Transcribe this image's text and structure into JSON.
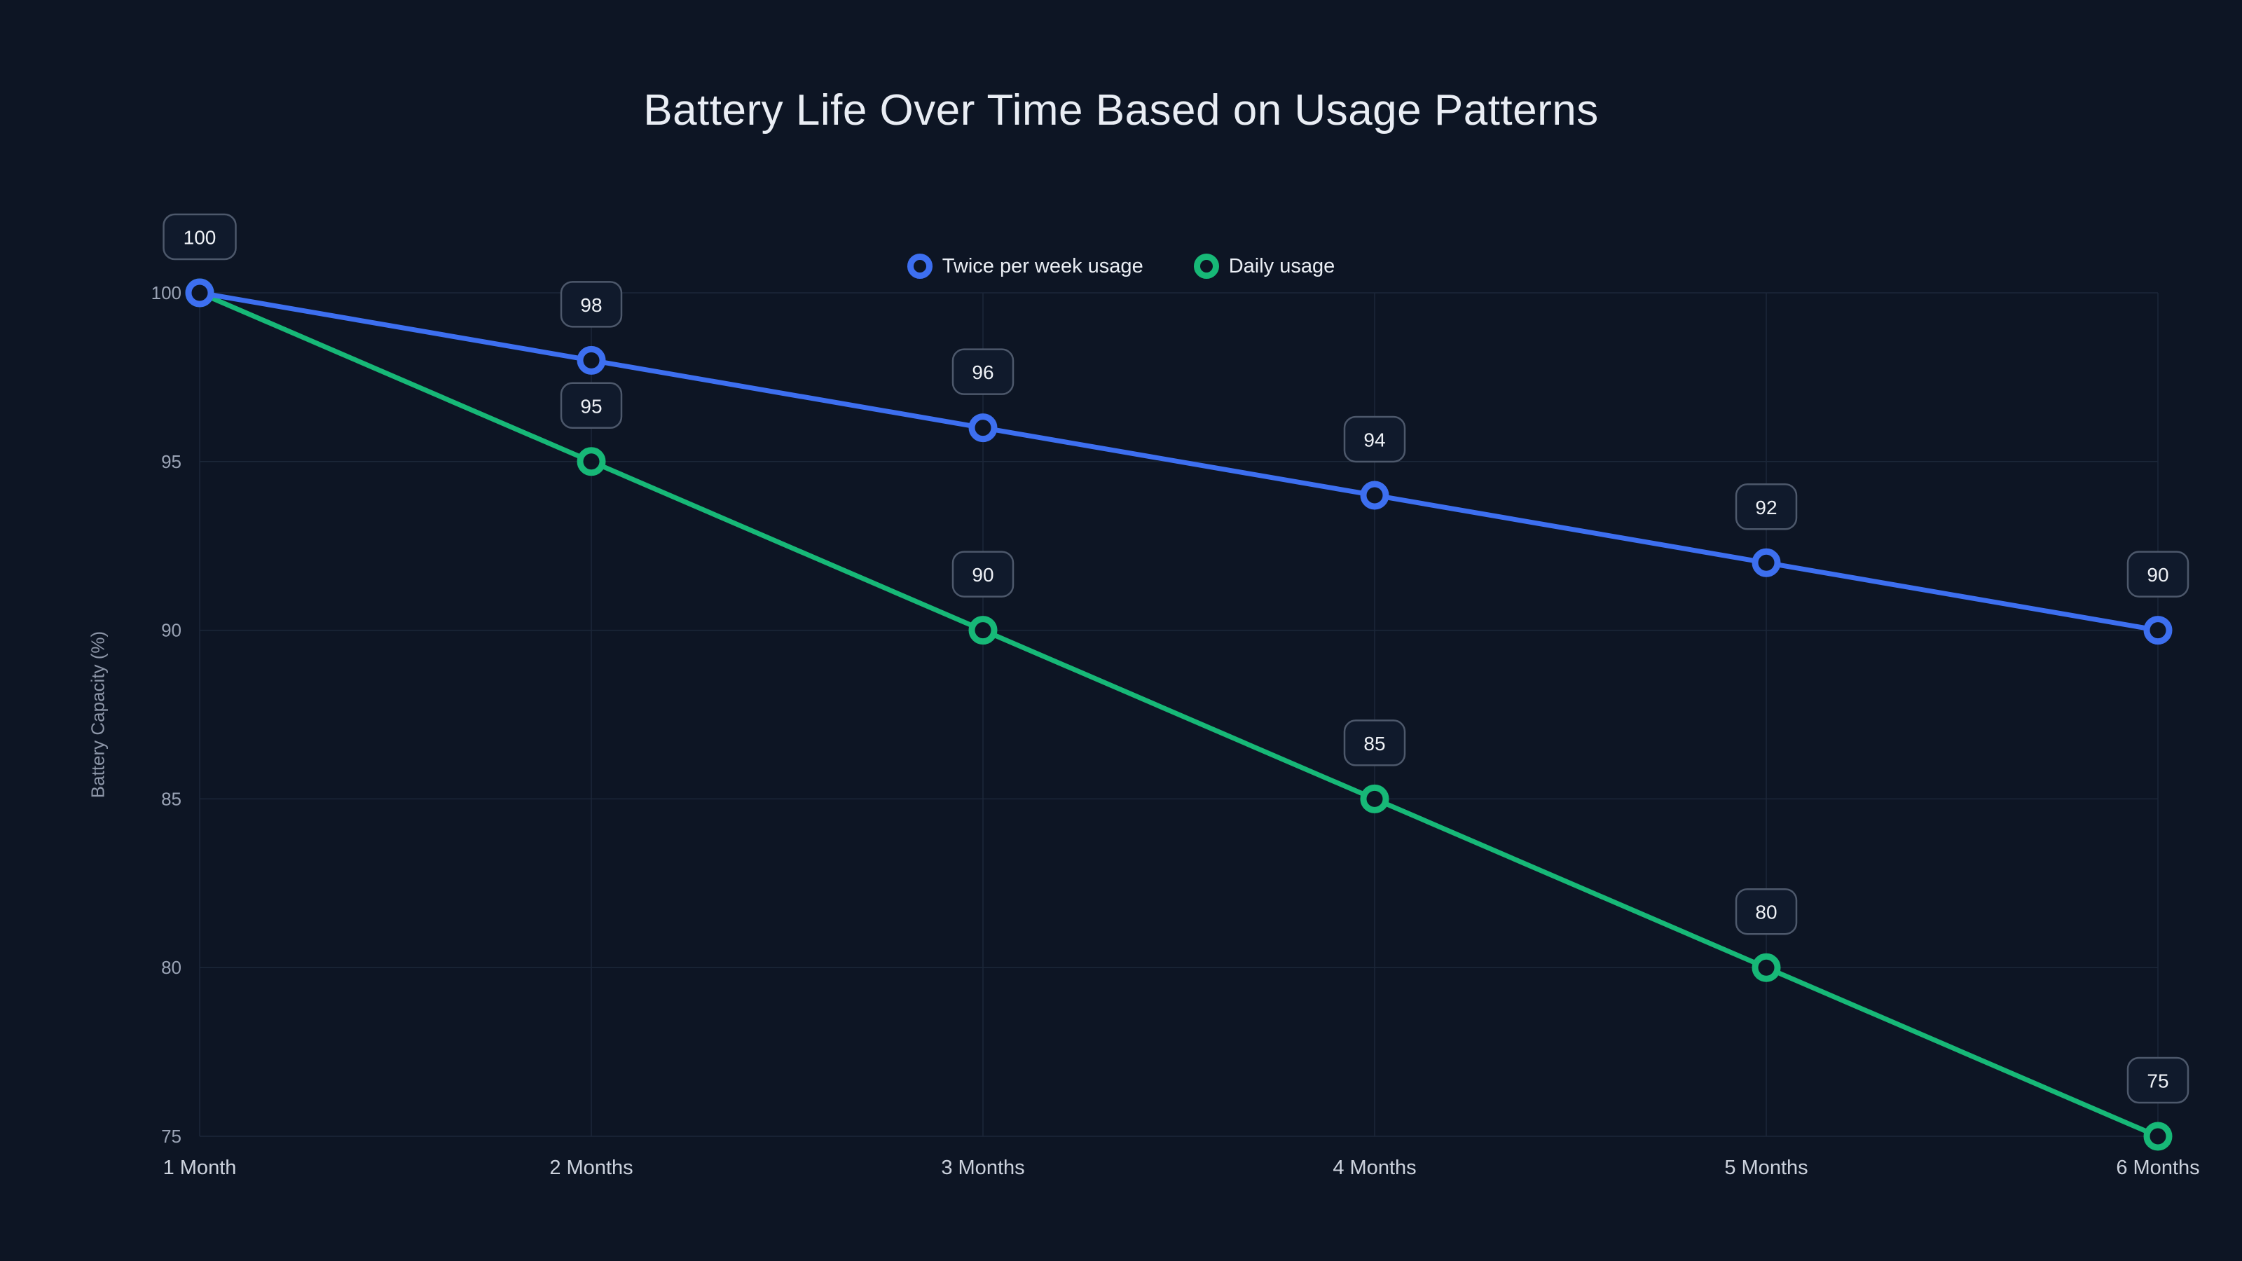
{
  "title": "Battery Life Over Time Based on Usage Patterns",
  "chart_data": {
    "type": "line",
    "categories": [
      "1 Month",
      "2 Months",
      "3 Months",
      "4 Months",
      "5 Months",
      "6 Months"
    ],
    "series": [
      {
        "name": "Twice per week usage",
        "color": "#3d6ff0",
        "values": [
          100,
          98,
          96,
          94,
          92,
          90
        ]
      },
      {
        "name": "Daily usage",
        "color": "#17b877",
        "values": [
          100,
          95,
          90,
          85,
          80,
          75
        ]
      }
    ],
    "xlabel": "",
    "ylabel": "Battery Capacity (%)",
    "ylim": [
      75,
      100
    ],
    "yticks": [
      75,
      80,
      85,
      90,
      95,
      100
    ],
    "grid": true,
    "legend_position": "top-center",
    "data_labels": true
  },
  "colors": {
    "background": "#0d1524",
    "grid": "#1c2739",
    "tick_text": "#9aa3b5",
    "axis_text": "#ccd2dd",
    "label_box_fill": "#101a2c",
    "label_box_border": "#4d586b",
    "label_text": "#eef1f6",
    "title_text": "#e9edf4"
  }
}
